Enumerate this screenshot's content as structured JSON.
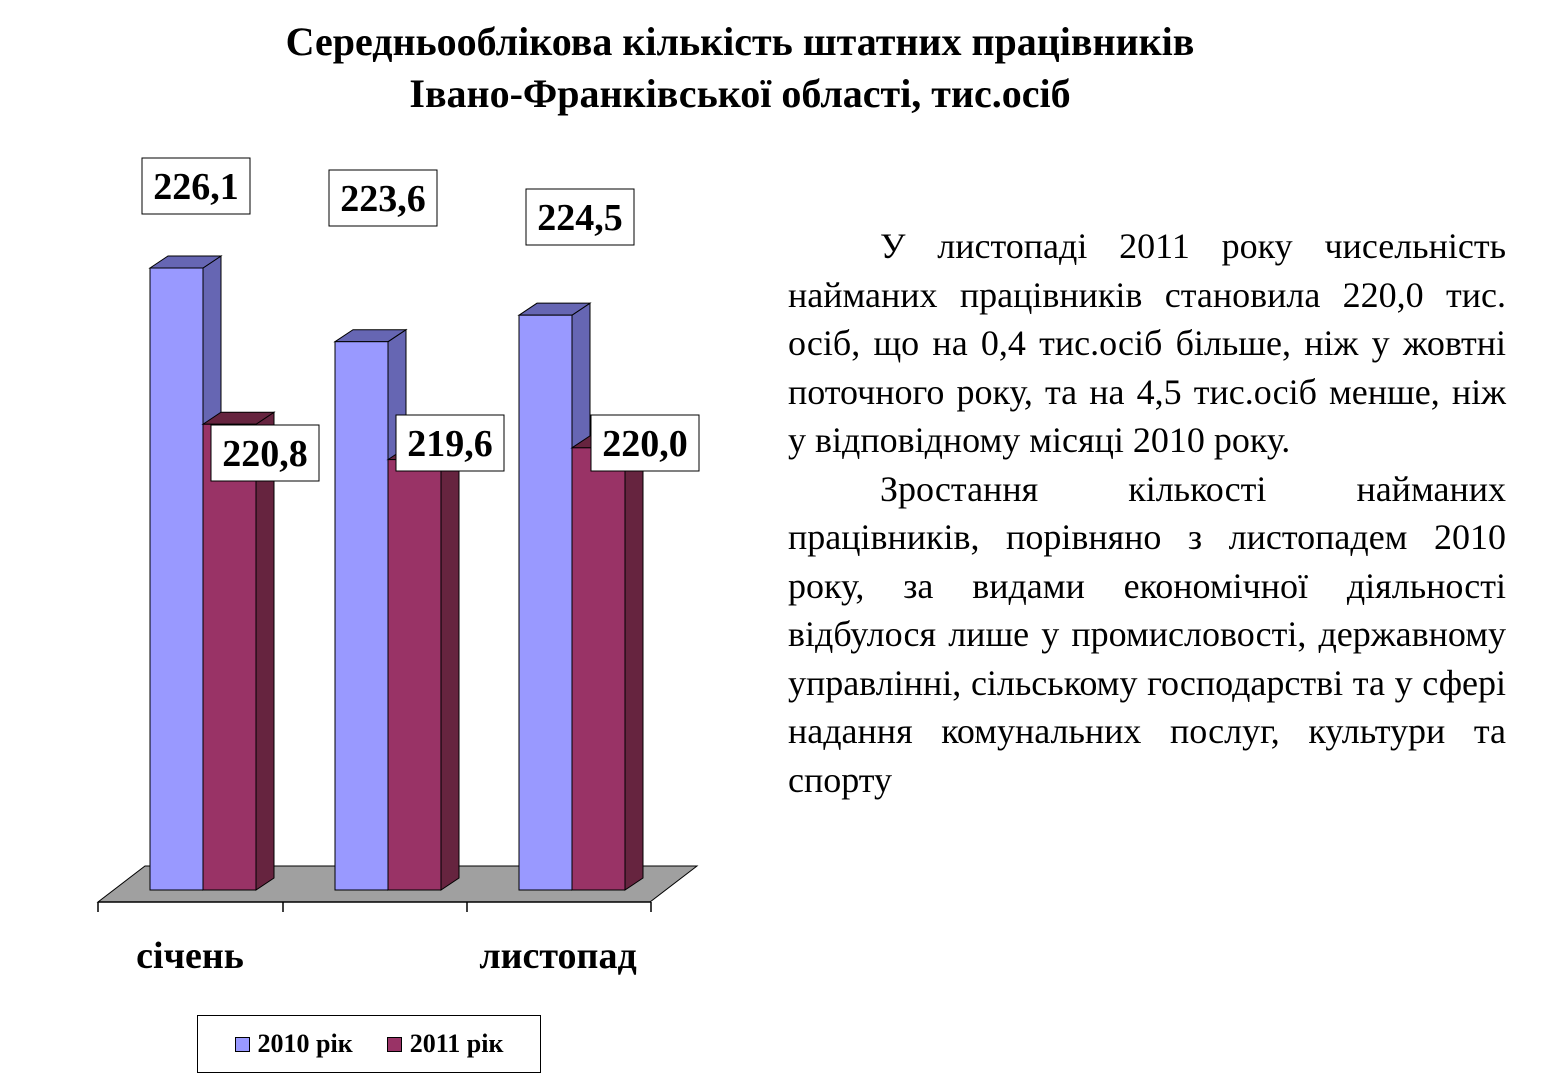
{
  "title": {
    "line1": "Середньооблікова кількість штатних працівників",
    "line2": "Івано-Франківської області, тис.осіб"
  },
  "chart_data": {
    "type": "bar",
    "style": "3d-clustered",
    "title": "Середньооблікова кількість штатних працівників Івано-Франківської області, тис.осіб",
    "categories": [
      "січень",
      "",
      "листопад"
    ],
    "series": [
      {
        "name": "2010 рік",
        "values": [
          226.1,
          223.6,
          224.5
        ],
        "labels": [
          "226,1",
          "223,6",
          "224,5"
        ],
        "color": "#9999ff",
        "side_color": "#6666b3"
      },
      {
        "name": "2011 рік",
        "values": [
          220.8,
          219.6,
          220.0
        ],
        "labels": [
          "220,8",
          "219,6",
          "220,0"
        ],
        "color": "#993366",
        "side_color": "#66243f"
      }
    ],
    "ylim": [
      205,
      228
    ],
    "legend_position": "bottom",
    "grid": false,
    "floor_color": "#a0a0a0"
  },
  "text": {
    "p1": "У листопаді 2011 року чисельність найманих працівників становила 220,0 тис. осіб, що на 0,4 тис.осіб більше, ніж у жовтні поточного року, та на 4,5 тис.осіб менше, ніж у відповідному місяці 2010 року.",
    "p2": "Зростання кількості найманих працівників, порівняно з листопадем 2010 року, за видами економічної діяльності відбулося лише у промисловості, державному управлінні, сільському господарстві та у сфері надання комунальних послуг, культури та спорту"
  }
}
